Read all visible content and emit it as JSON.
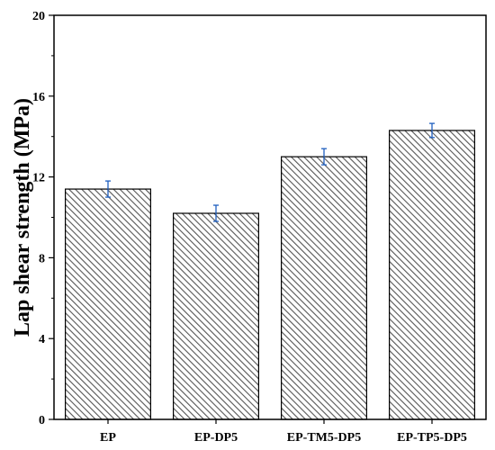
{
  "chart_data": {
    "type": "bar",
    "title": "",
    "xlabel": "",
    "ylabel": "Lap shear strength (MPa)",
    "categories": [
      "EP",
      "EP-DP5",
      "EP-TM5-DP5",
      "EP-TP5-DP5"
    ],
    "values": [
      11.4,
      10.2,
      13.0,
      14.3
    ],
    "errors": [
      0.4,
      0.4,
      0.4,
      0.35
    ],
    "ylim": [
      0,
      20
    ],
    "yticks": [
      0,
      4,
      8,
      12,
      16,
      20
    ],
    "ytick_labels": [
      "0",
      "4",
      "8",
      "12",
      "16",
      "20"
    ],
    "grid": false,
    "bar_fill": "hatched-diagonal",
    "bar_color": "#555555",
    "error_color": "#1f5fbf"
  }
}
